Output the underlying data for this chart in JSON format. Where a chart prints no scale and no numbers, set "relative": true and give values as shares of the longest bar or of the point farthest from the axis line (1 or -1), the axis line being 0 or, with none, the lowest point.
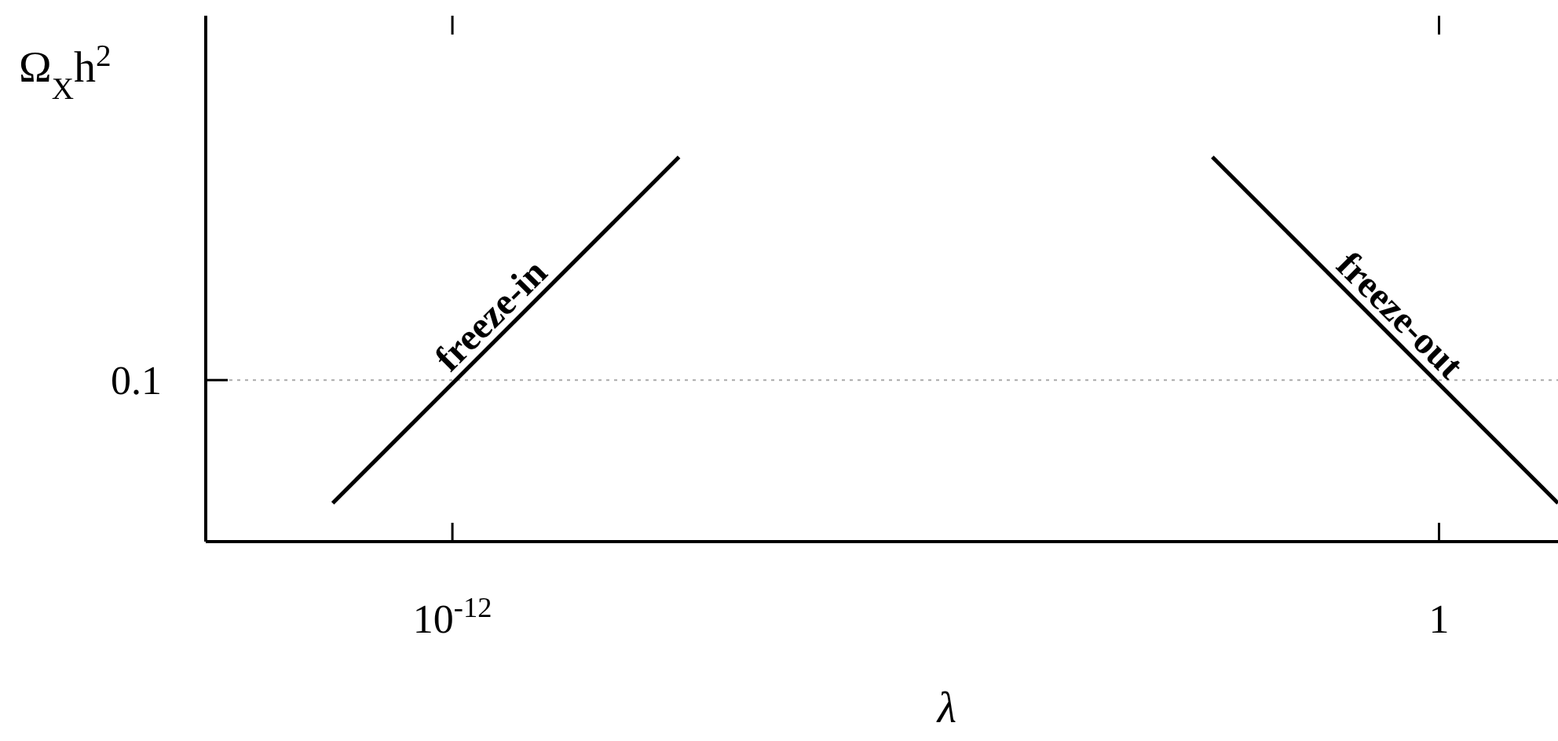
{
  "chart_data": {
    "type": "line",
    "xlabel": "λ",
    "ylabel": "Ω$_{X}$h$^{2}$",
    "relative": true,
    "log": "x",
    "xlim": [
      1e-15,
      28
    ],
    "xticks": [
      {
        "value": 1e-12,
        "label": "10$^{-12}$"
      },
      1
    ],
    "series": [
      {
        "name": "freeze-in",
        "color": "#000000",
        "x": [
          3.5e-14,
          5.7e-10
        ],
        "values": [
          0.1,
          1
        ]
      },
      {
        "name": "freeze-out",
        "color": "#000000",
        "x": [
          0.00175,
          28
        ],
        "values": [
          1,
          0.1
        ]
      }
    ],
    "ref_lines": [
      {
        "axis": "y",
        "value": 0.42,
        "color": "#aaaaaa",
        "line_style": "dotted"
      }
    ],
    "annotations": [
      "0.1"
    ]
  }
}
